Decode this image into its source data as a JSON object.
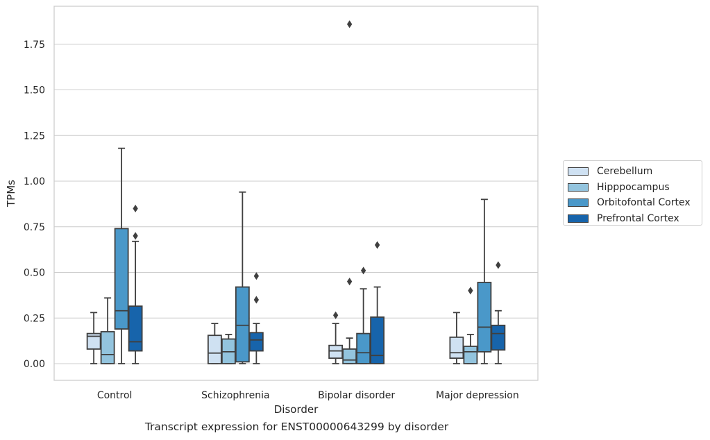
{
  "caption": "Transcript expression for ENST00000643299 by disorder",
  "colors": {
    "Cerebellum": "#cfe1f2",
    "Hipppocampus": "#93c4de",
    "Orbitofontal Cortex": "#4a98c9",
    "Prefrontal Cortex": "#1764ab",
    "box_edge": "#3f3f3f",
    "grid": "#cccccc"
  },
  "chart_data": {
    "type": "boxplot",
    "title": "",
    "xlabel": "Disorder",
    "ylabel": "TPMs",
    "categories": [
      "Control",
      "Schizophrenia",
      "Bipolar disorder",
      "Major depression"
    ],
    "ylim": [
      -0.09,
      1.96
    ],
    "yticks": [
      "0.00",
      "0.25",
      "0.50",
      "0.75",
      "1.00",
      "1.25",
      "1.50",
      "1.75"
    ],
    "grid": "horizontal",
    "legend_position": "right",
    "series": [
      {
        "name": "Cerebellum",
        "boxes": [
          {
            "whislo": 0.0,
            "q1": 0.08,
            "med": 0.15,
            "q3": 0.165,
            "whishi": 0.28,
            "fliers": []
          },
          {
            "whislo": 0.0,
            "q1": 0.0,
            "med": 0.058,
            "q3": 0.155,
            "whishi": 0.22,
            "fliers": []
          },
          {
            "whislo": 0.0,
            "q1": 0.03,
            "med": 0.07,
            "q3": 0.1,
            "whishi": 0.22,
            "fliers": [
              0.265
            ]
          },
          {
            "whislo": 0.0,
            "q1": 0.03,
            "med": 0.06,
            "q3": 0.145,
            "whishi": 0.28,
            "fliers": []
          }
        ]
      },
      {
        "name": "Hipppocampus",
        "boxes": [
          {
            "whislo": 0.0,
            "q1": 0.0,
            "med": 0.05,
            "q3": 0.175,
            "whishi": 0.36,
            "fliers": []
          },
          {
            "whislo": 0.0,
            "q1": 0.0,
            "med": 0.065,
            "q3": 0.135,
            "whishi": 0.16,
            "fliers": []
          },
          {
            "whislo": 0.0,
            "q1": 0.0,
            "med": 0.02,
            "q3": 0.08,
            "whishi": 0.14,
            "fliers": [
              0.45,
              1.86
            ]
          },
          {
            "whislo": 0.0,
            "q1": 0.0,
            "med": 0.065,
            "q3": 0.095,
            "whishi": 0.16,
            "fliers": [
              0.4
            ]
          }
        ]
      },
      {
        "name": "Orbitofontal Cortex",
        "boxes": [
          {
            "whislo": 0.0,
            "q1": 0.19,
            "med": 0.29,
            "q3": 0.74,
            "whishi": 1.18,
            "fliers": []
          },
          {
            "whislo": 0.0,
            "q1": 0.01,
            "med": 0.21,
            "q3": 0.42,
            "whishi": 0.94,
            "fliers": []
          },
          {
            "whislo": 0.0,
            "q1": 0.0,
            "med": 0.06,
            "q3": 0.165,
            "whishi": 0.41,
            "fliers": [
              0.51
            ]
          },
          {
            "whislo": 0.0,
            "q1": 0.065,
            "med": 0.2,
            "q3": 0.445,
            "whishi": 0.9,
            "fliers": []
          }
        ]
      },
      {
        "name": "Prefrontal Cortex",
        "boxes": [
          {
            "whislo": 0.0,
            "q1": 0.07,
            "med": 0.12,
            "q3": 0.315,
            "whishi": 0.67,
            "fliers": [
              0.7,
              0.85
            ]
          },
          {
            "whislo": 0.0,
            "q1": 0.07,
            "med": 0.13,
            "q3": 0.17,
            "whishi": 0.22,
            "fliers": [
              0.35,
              0.48
            ]
          },
          {
            "whislo": 0.0,
            "q1": 0.0,
            "med": 0.045,
            "q3": 0.255,
            "whishi": 0.42,
            "fliers": [
              0.65
            ]
          },
          {
            "whislo": 0.0,
            "q1": 0.075,
            "med": 0.165,
            "q3": 0.21,
            "whishi": 0.29,
            "fliers": [
              0.54
            ]
          }
        ]
      }
    ]
  }
}
